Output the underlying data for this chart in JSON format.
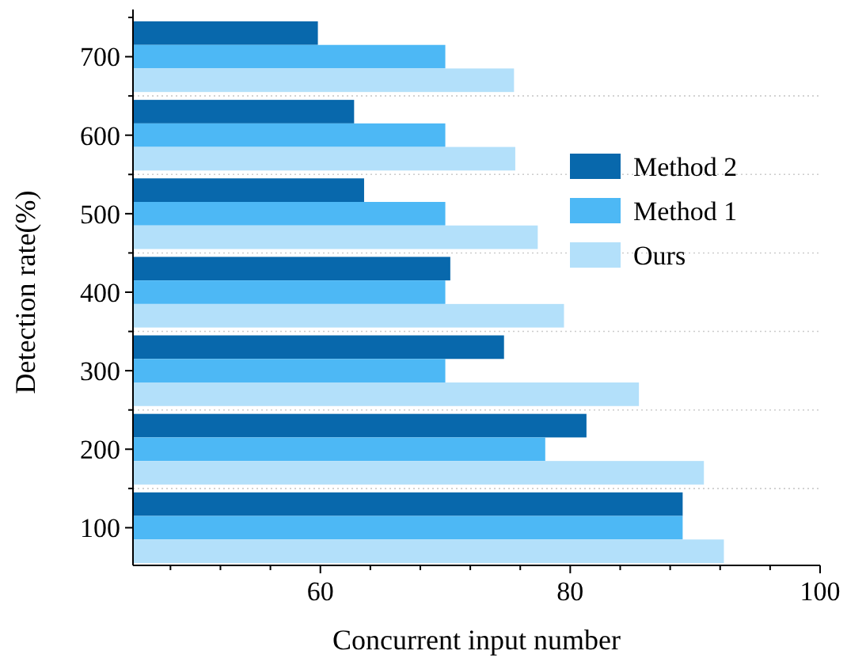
{
  "chart_data": {
    "type": "bar",
    "orientation": "horizontal",
    "xlabel": "Concurrent input number",
    "ylabel": "Detection rate(%)",
    "categories": [
      "700",
      "600",
      "500",
      "400",
      "300",
      "200",
      "100"
    ],
    "series": [
      {
        "name": "Method 2",
        "color": "#0868ac",
        "values": [
          59.8,
          62.7,
          63.5,
          70.4,
          74.7,
          81.3,
          89
        ]
      },
      {
        "name": "Method 1",
        "color": "#4db8f5",
        "values": [
          70,
          70,
          70,
          70,
          70,
          78,
          89
        ]
      },
      {
        "name": "Ours",
        "color": "#b3e0fa",
        "values": [
          75.5,
          75.6,
          77.4,
          79.5,
          85.5,
          90.7,
          92.3
        ]
      }
    ],
    "xlim": [
      45,
      100
    ],
    "xticks": [
      {
        "value": 48,
        "label": null
      },
      {
        "value": 52,
        "label": null
      },
      {
        "value": 56,
        "label": null
      },
      60,
      {
        "value": 64,
        "label": null
      },
      {
        "value": 68,
        "label": null
      },
      {
        "value": 72,
        "label": null
      },
      {
        "value": 76,
        "label": null
      },
      80,
      {
        "value": 84,
        "label": null
      },
      {
        "value": 88,
        "label": null
      },
      {
        "value": 92,
        "label": null
      },
      {
        "value": 96,
        "label": null
      },
      100
    ],
    "grid": "y",
    "legend": "right"
  }
}
